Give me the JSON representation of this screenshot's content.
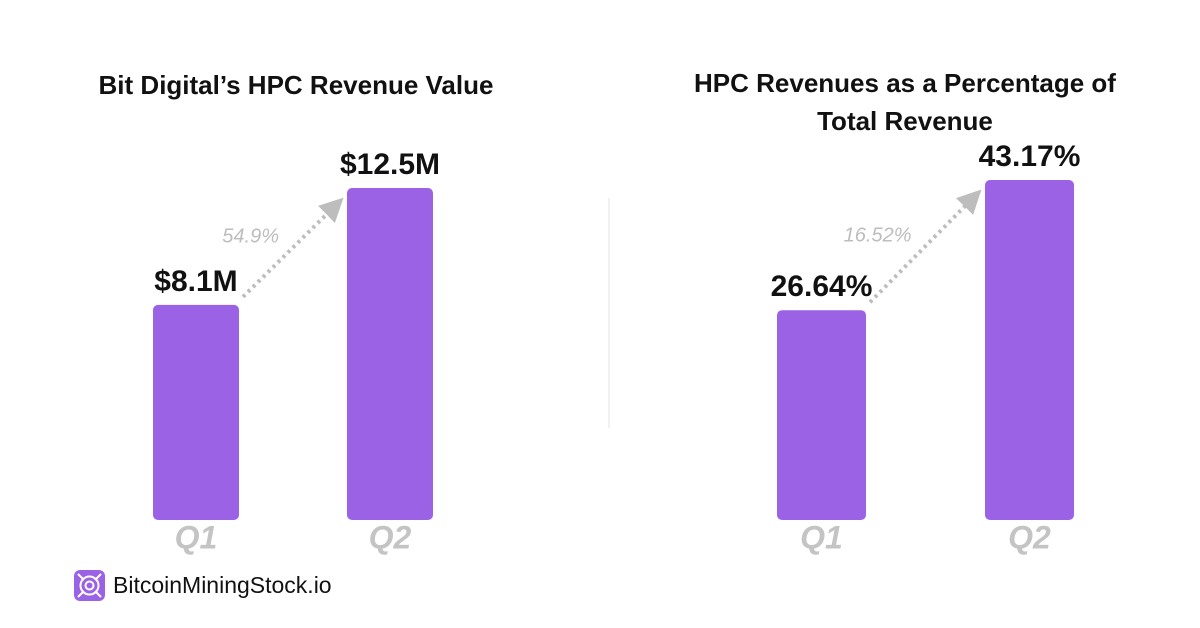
{
  "chart_data": [
    {
      "type": "bar",
      "title": "Bit Digital’s HPC Revenue Value",
      "categories": [
        "Q1",
        "Q2"
      ],
      "values": [
        8.1,
        12.5
      ],
      "value_labels": [
        "$8.1M",
        "$12.5M"
      ],
      "growth_label": "54.9%",
      "color": "#9b62e6"
    },
    {
      "type": "bar",
      "title": "HPC Revenues as a Percentage of Total Revenue",
      "categories": [
        "Q1",
        "Q2"
      ],
      "values": [
        26.64,
        43.17
      ],
      "value_labels": [
        "26.64%",
        "43.17%"
      ],
      "growth_label": "16.52%",
      "color": "#9b62e6"
    }
  ],
  "footer": {
    "brand": "BitcoinMiningStock.io"
  }
}
